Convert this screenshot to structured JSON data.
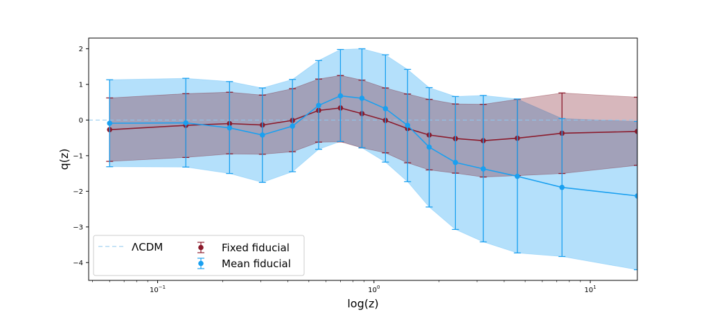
{
  "chart_data": {
    "type": "line",
    "xscale": "log",
    "xlabel": "log(z)",
    "ylabel": "q(z)",
    "xlim": [
      0.048,
      16.5
    ],
    "ylim": [
      -4.5,
      2.3
    ],
    "x_ticks": [
      {
        "value": 0.1,
        "base": "10",
        "exp": "−1"
      },
      {
        "value": 1,
        "base": "10",
        "exp": "0"
      },
      {
        "value": 10,
        "base": "10",
        "exp": "1"
      }
    ],
    "y_ticks": [
      {
        "value": 2,
        "label": "2"
      },
      {
        "value": 1,
        "label": "1"
      },
      {
        "value": 0,
        "label": "0"
      },
      {
        "value": -1,
        "label": "−1"
      },
      {
        "value": -2,
        "label": "−2"
      },
      {
        "value": -3,
        "label": "−3"
      },
      {
        "value": -4,
        "label": "−4"
      }
    ],
    "reference_line": {
      "name": "ΛCDM",
      "y": 0,
      "color": "#8ec7ee"
    },
    "series": [
      {
        "name": "Fixed fiducial",
        "color": "#8b1a2b",
        "band_color": "#7b1020",
        "x": [
          0.06,
          0.135,
          0.215,
          0.305,
          0.42,
          0.555,
          0.7,
          0.88,
          1.13,
          1.43,
          1.8,
          2.38,
          3.2,
          4.6,
          7.4,
          16.5
        ],
        "y": [
          -0.27,
          -0.15,
          -0.1,
          -0.14,
          -0.01,
          0.27,
          0.34,
          0.18,
          -0.01,
          -0.24,
          -0.42,
          -0.52,
          -0.58,
          -0.51,
          -0.37,
          -0.32
        ],
        "err_low": [
          0.89,
          0.9,
          0.85,
          0.82,
          0.88,
          0.89,
          0.95,
          0.96,
          0.91,
          0.96,
          0.98,
          0.97,
          1.02,
          1.05,
          1.13,
          0.95
        ],
        "err_high": [
          0.89,
          0.89,
          0.88,
          0.84,
          0.89,
          0.88,
          0.91,
          0.94,
          0.91,
          0.97,
          1.0,
          0.97,
          1.02,
          1.09,
          1.13,
          0.96
        ]
      },
      {
        "name": "Mean fiducial",
        "color": "#1aa0f0",
        "band_color": "#4db5f5",
        "x": [
          0.06,
          0.135,
          0.215,
          0.305,
          0.42,
          0.555,
          0.7,
          0.88,
          1.13,
          1.43,
          1.8,
          2.38,
          3.2,
          4.6,
          7.4,
          16.5
        ],
        "y": [
          -0.09,
          -0.08,
          -0.22,
          -0.42,
          -0.17,
          0.41,
          0.68,
          0.61,
          0.32,
          -0.15,
          -0.76,
          -1.19,
          -1.37,
          -1.58,
          -1.89,
          -2.13
        ],
        "err_low": [
          1.22,
          1.24,
          1.28,
          1.33,
          1.28,
          1.23,
          1.28,
          1.39,
          1.5,
          1.58,
          1.68,
          1.88,
          2.05,
          2.15,
          1.94,
          2.07
        ],
        "err_high": [
          1.22,
          1.25,
          1.3,
          1.32,
          1.31,
          1.26,
          1.3,
          1.39,
          1.51,
          1.57,
          1.67,
          1.85,
          2.06,
          2.17,
          1.93,
          2.09
        ]
      }
    ],
    "legend": {
      "position": "lower-left",
      "columns": 2
    }
  }
}
